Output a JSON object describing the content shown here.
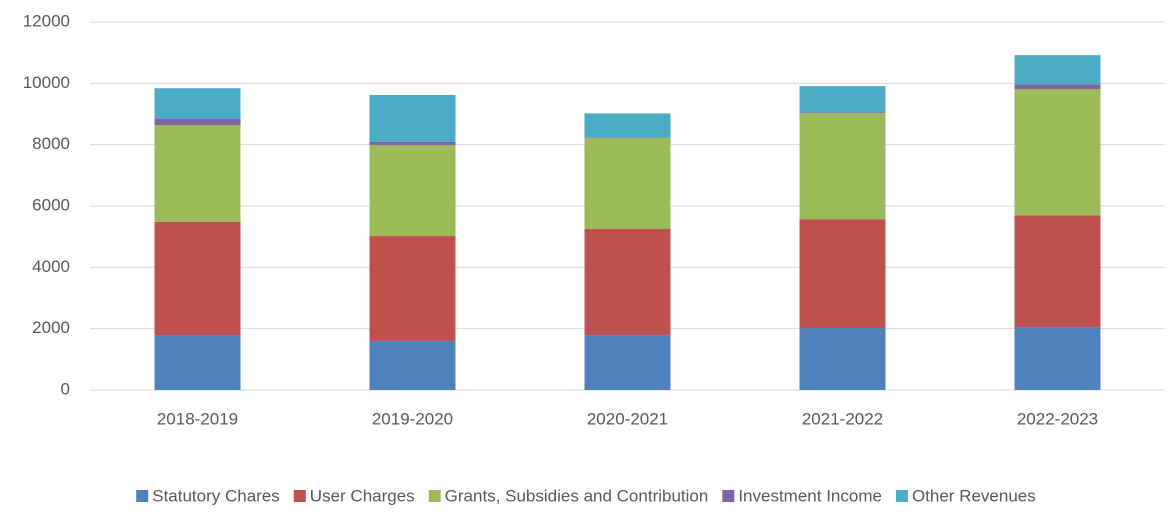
{
  "chart_data": {
    "type": "stacked_bar",
    "categories": [
      "2018-2019",
      "2019-2020",
      "2020-2021",
      "2021-2022",
      "2022-2023"
    ],
    "series": [
      {
        "name": "Statutory Chares",
        "color": "#4f81bd",
        "values": [
          1780,
          1600,
          1790,
          2020,
          2050
        ]
      },
      {
        "name": "User Charges",
        "color": "#c0504d",
        "values": [
          3700,
          3420,
          3460,
          3550,
          3650
        ]
      },
      {
        "name": "Grants, Subsidies and Contribution",
        "color": "#9bbb59",
        "values": [
          3160,
          2970,
          2970,
          3460,
          4110
        ]
      },
      {
        "name": "Investment Income",
        "color": "#8064a2",
        "values": [
          220,
          100,
          20,
          20,
          160
        ]
      },
      {
        "name": "Other Revenues",
        "color": "#4bacc6",
        "values": [
          980,
          1530,
          780,
          860,
          950
        ]
      }
    ],
    "ylim": [
      0,
      12000
    ],
    "yticks": [
      0,
      2000,
      4000,
      6000,
      8000,
      10000,
      12000
    ],
    "grid": true,
    "legend": "bottom"
  }
}
